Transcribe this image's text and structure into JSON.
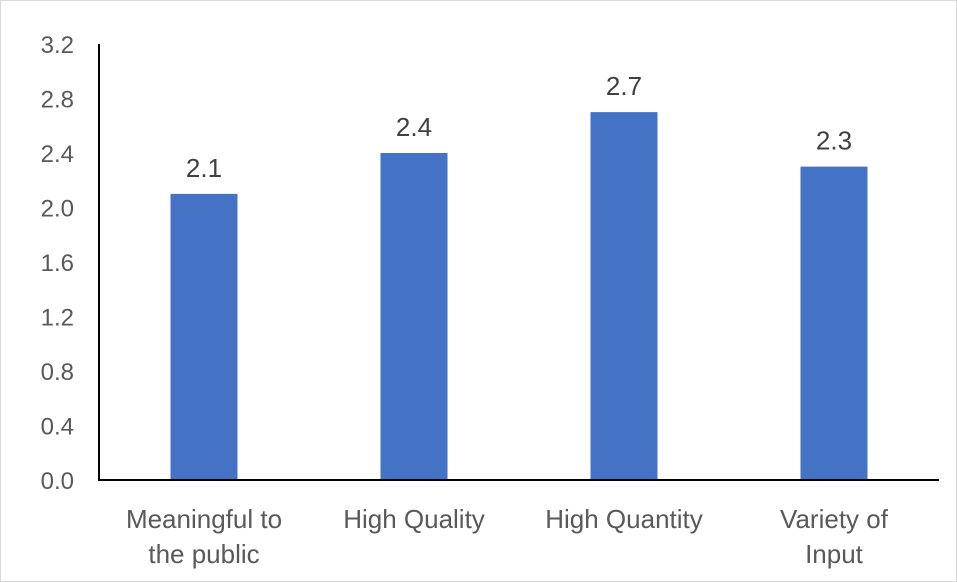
{
  "chart_data": {
    "type": "bar",
    "title": "",
    "xlabel": "",
    "ylabel": "",
    "categories": [
      [
        "Meaningful to",
        "the public"
      ],
      [
        "High Quality"
      ],
      [
        "High Quantity"
      ],
      [
        "Variety of",
        "Input"
      ]
    ],
    "values": [
      2.1,
      2.4,
      2.7,
      2.3
    ],
    "data_labels": [
      "2.1",
      "2.4",
      "2.7",
      "2.3"
    ],
    "ylim": [
      0,
      3.2
    ],
    "yticks": [
      "0.0",
      "0.4",
      "0.8",
      "1.2",
      "1.6",
      "2.0",
      "2.4",
      "2.8",
      "3.2"
    ],
    "grid": false,
    "legend": "none",
    "colors": {
      "bar": "#4472C4",
      "axis": "#000000",
      "tick_text": "#595959",
      "data_label_text": "#404040",
      "frame": "#d9d9d9"
    }
  }
}
